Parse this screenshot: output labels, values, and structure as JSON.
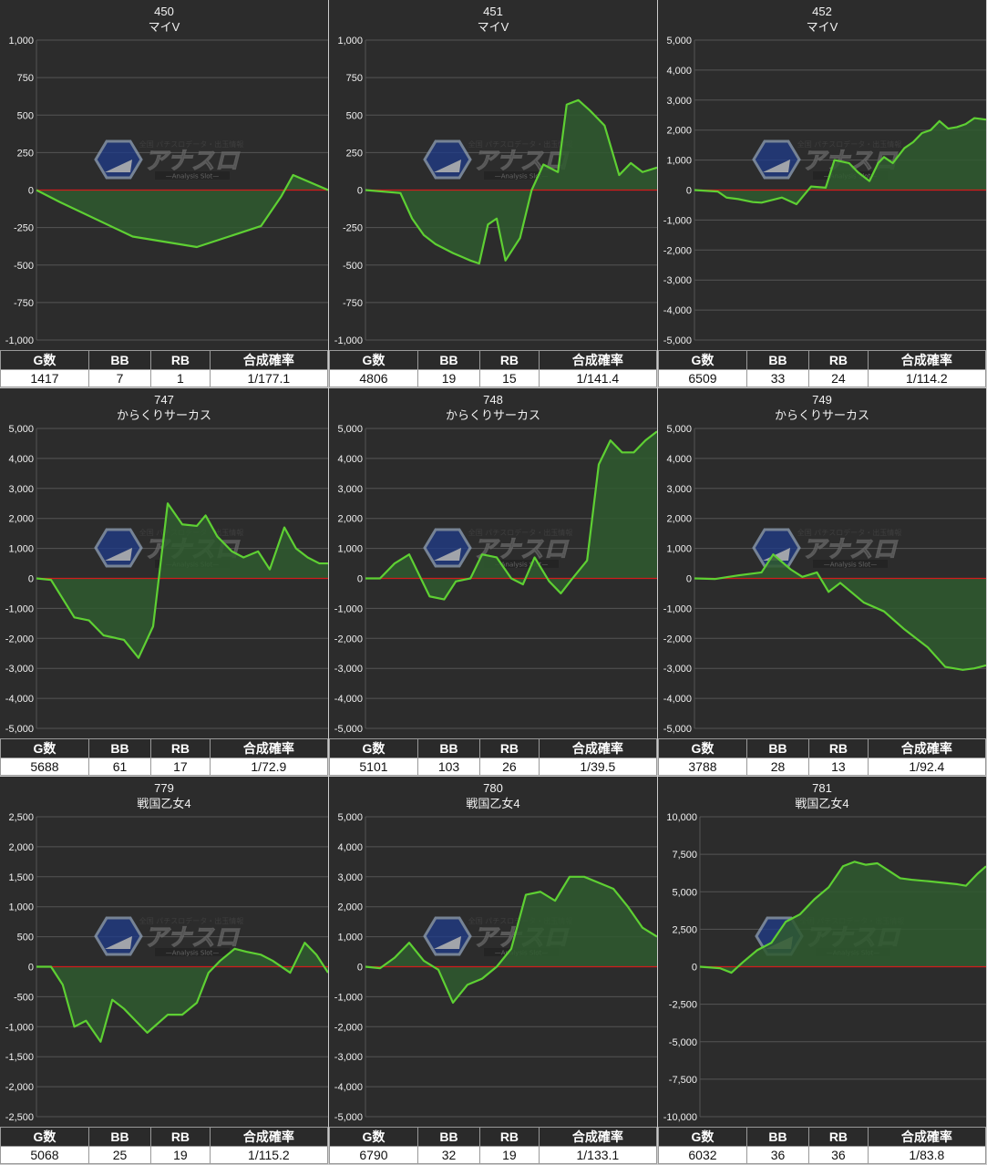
{
  "stats_headers": [
    "G数",
    "BB",
    "RB",
    "合成確率"
  ],
  "line_color": "#5ed033",
  "fill_color": "#2f5a2f",
  "zero_line_color": "#d11c1c",
  "watermark": {
    "title": "アナスロ",
    "subtitle": "—Analysis Slot—",
    "tagline": "全国 パチスロデータ・出玉情報"
  },
  "charts": [
    {
      "machine": "450",
      "model": "マイV",
      "stats": {
        "g": "1417",
        "bb": "7",
        "rb": "1",
        "prob": "1/177.1"
      },
      "chart_data": {
        "type": "area",
        "yticks": [
          "1,000",
          "750",
          "500",
          "250",
          "0",
          "-250",
          "-500",
          "-750",
          "-1,000"
        ],
        "ylim": [
          -1000,
          1000
        ],
        "x": [
          0,
          0.08,
          0.33,
          0.55,
          0.77,
          0.84,
          0.88,
          1.0
        ],
        "y": [
          0,
          -80,
          -310,
          -380,
          -240,
          -40,
          100,
          0
        ]
      }
    },
    {
      "machine": "451",
      "model": "マイV",
      "stats": {
        "g": "4806",
        "bb": "19",
        "rb": "15",
        "prob": "1/141.4"
      },
      "chart_data": {
        "type": "area",
        "yticks": [
          "1,000",
          "750",
          "500",
          "250",
          "0",
          "-250",
          "-500",
          "-750",
          "-1,000"
        ],
        "ylim": [
          -1000,
          1000
        ],
        "x": [
          0,
          0.12,
          0.16,
          0.2,
          0.24,
          0.3,
          0.36,
          0.39,
          0.42,
          0.45,
          0.48,
          0.53,
          0.57,
          0.61,
          0.66,
          0.69,
          0.73,
          0.77,
          0.82,
          0.87,
          0.91,
          0.95,
          1.0
        ],
        "y": [
          0,
          -20,
          -190,
          -300,
          -360,
          -420,
          -470,
          -490,
          -230,
          -190,
          -470,
          -320,
          0,
          170,
          120,
          570,
          600,
          530,
          430,
          100,
          180,
          120,
          150
        ]
      }
    },
    {
      "machine": "452",
      "model": "マイV",
      "stats": {
        "g": "6509",
        "bb": "33",
        "rb": "24",
        "prob": "1/114.2"
      },
      "chart_data": {
        "type": "area",
        "yticks": [
          "5,000",
          "4,000",
          "3,000",
          "2,000",
          "1,000",
          "0",
          "-1,000",
          "-2,000",
          "-3,000",
          "-4,000",
          "-5,000"
        ],
        "ylim": [
          -5000,
          5000
        ],
        "x": [
          0,
          0.08,
          0.11,
          0.15,
          0.2,
          0.23,
          0.3,
          0.35,
          0.4,
          0.45,
          0.48,
          0.53,
          0.56,
          0.6,
          0.63,
          0.65,
          0.68,
          0.72,
          0.75,
          0.78,
          0.81,
          0.84,
          0.87,
          0.9,
          0.93,
          0.96,
          1.0
        ],
        "y": [
          0,
          -50,
          -250,
          -300,
          -400,
          -420,
          -250,
          -470,
          120,
          80,
          1000,
          900,
          600,
          300,
          900,
          1100,
          900,
          1400,
          1600,
          1900,
          2000,
          2300,
          2050,
          2100,
          2200,
          2400,
          2350
        ]
      }
    },
    {
      "machine": "747",
      "model": "からくりサーカス",
      "stats": {
        "g": "5688",
        "bb": "61",
        "rb": "17",
        "prob": "1/72.9"
      },
      "chart_data": {
        "type": "area",
        "yticks": [
          "5,000",
          "4,000",
          "3,000",
          "2,000",
          "1,000",
          "0",
          "-1,000",
          "-2,000",
          "-3,000",
          "-4,000",
          "-5,000"
        ],
        "ylim": [
          -5000,
          5000
        ],
        "x": [
          0,
          0.05,
          0.13,
          0.18,
          0.23,
          0.3,
          0.35,
          0.4,
          0.45,
          0.5,
          0.55,
          0.58,
          0.62,
          0.67,
          0.71,
          0.76,
          0.8,
          0.85,
          0.89,
          0.93,
          0.97,
          1.0
        ],
        "y": [
          0,
          -50,
          -1300,
          -1400,
          -1900,
          -2050,
          -2650,
          -1600,
          2500,
          1800,
          1750,
          2100,
          1400,
          900,
          700,
          900,
          300,
          1700,
          1000,
          700,
          500,
          500
        ]
      }
    },
    {
      "machine": "748",
      "model": "からくりサーカス",
      "stats": {
        "g": "5101",
        "bb": "103",
        "rb": "26",
        "prob": "1/39.5"
      },
      "chart_data": {
        "type": "area",
        "yticks": [
          "5,000",
          "4,000",
          "3,000",
          "2,000",
          "1,000",
          "0",
          "-1,000",
          "-2,000",
          "-3,000",
          "-4,000",
          "-5,000"
        ],
        "ylim": [
          -5000,
          5000
        ],
        "x": [
          0,
          0.05,
          0.1,
          0.15,
          0.22,
          0.27,
          0.31,
          0.36,
          0.4,
          0.45,
          0.5,
          0.54,
          0.58,
          0.63,
          0.67,
          0.71,
          0.76,
          0.8,
          0.84,
          0.88,
          0.92,
          0.96,
          1.0
        ],
        "y": [
          0,
          0,
          500,
          800,
          -600,
          -700,
          -100,
          0,
          800,
          700,
          0,
          -200,
          700,
          -100,
          -500,
          0,
          600,
          3800,
          4600,
          4200,
          4200,
          4600,
          4900
        ]
      }
    },
    {
      "machine": "749",
      "model": "からくりサーカス",
      "stats": {
        "g": "3788",
        "bb": "28",
        "rb": "13",
        "prob": "1/92.4"
      },
      "chart_data": {
        "type": "area",
        "yticks": [
          "5,000",
          "4,000",
          "3,000",
          "2,000",
          "1,000",
          "0",
          "-1,000",
          "-2,000",
          "-3,000",
          "-4,000",
          "-5,000"
        ],
        "ylim": [
          -5000,
          5000
        ],
        "x": [
          0,
          0.07,
          0.15,
          0.23,
          0.27,
          0.33,
          0.37,
          0.42,
          0.46,
          0.5,
          0.58,
          0.65,
          0.72,
          0.8,
          0.86,
          0.92,
          0.96,
          1.0
        ],
        "y": [
          0,
          -20,
          100,
          200,
          800,
          300,
          50,
          200,
          -450,
          -150,
          -800,
          -1100,
          -1700,
          -2300,
          -2950,
          -3050,
          -3000,
          -2900
        ]
      }
    },
    {
      "machine": "779",
      "model": "戦国乙女4",
      "stats": {
        "g": "5068",
        "bb": "25",
        "rb": "19",
        "prob": "1/115.2"
      },
      "chart_data": {
        "type": "area",
        "yticks": [
          "2,500",
          "2,000",
          "1,500",
          "1,000",
          "500",
          "0",
          "-500",
          "-1,000",
          "-1,500",
          "-2,000",
          "-2,500"
        ],
        "ylim": [
          -2500,
          2500
        ],
        "x": [
          0,
          0.05,
          0.09,
          0.13,
          0.17,
          0.22,
          0.26,
          0.3,
          0.34,
          0.38,
          0.45,
          0.5,
          0.55,
          0.59,
          0.63,
          0.68,
          0.72,
          0.77,
          0.81,
          0.87,
          0.92,
          0.96,
          1.0
        ],
        "y": [
          0,
          0,
          -300,
          -1000,
          -900,
          -1250,
          -550,
          -700,
          -900,
          -1100,
          -800,
          -800,
          -600,
          -100,
          100,
          300,
          250,
          200,
          100,
          -100,
          400,
          200,
          -100
        ]
      }
    },
    {
      "machine": "780",
      "model": "戦国乙女4",
      "stats": {
        "g": "6790",
        "bb": "32",
        "rb": "19",
        "prob": "1/133.1"
      },
      "chart_data": {
        "type": "area",
        "yticks": [
          "5,000",
          "4,000",
          "3,000",
          "2,000",
          "1,000",
          "0",
          "-1,000",
          "-2,000",
          "-3,000",
          "-4,000",
          "-5,000"
        ],
        "ylim": [
          -5000,
          5000
        ],
        "x": [
          0,
          0.05,
          0.1,
          0.15,
          0.2,
          0.25,
          0.3,
          0.35,
          0.4,
          0.45,
          0.5,
          0.55,
          0.6,
          0.65,
          0.7,
          0.75,
          0.8,
          0.85,
          0.9,
          0.95,
          1.0
        ],
        "y": [
          0,
          -50,
          300,
          800,
          200,
          -100,
          -1200,
          -600,
          -400,
          0,
          600,
          2400,
          2500,
          2200,
          3000,
          3000,
          2800,
          2600,
          2000,
          1300,
          1000
        ]
      }
    },
    {
      "machine": "781",
      "model": "戦国乙女4",
      "stats": {
        "g": "6032",
        "bb": "36",
        "rb": "36",
        "prob": "1/83.8"
      },
      "chart_data": {
        "type": "area",
        "yticks": [
          "10,000",
          "7,500",
          "5,000",
          "2,500",
          "0",
          "-2,500",
          "-5,000",
          "-7,500",
          "-10,000"
        ],
        "ylim": [
          -10000,
          10000
        ],
        "x": [
          0,
          0.07,
          0.11,
          0.15,
          0.2,
          0.25,
          0.3,
          0.35,
          0.4,
          0.45,
          0.5,
          0.54,
          0.58,
          0.62,
          0.66,
          0.7,
          0.74,
          0.8,
          0.9,
          0.93,
          0.97,
          1.0
        ],
        "y": [
          0,
          -100,
          -400,
          300,
          1100,
          1600,
          3000,
          3500,
          4500,
          5300,
          6700,
          7000,
          6800,
          6900,
          6400,
          5900,
          5800,
          5700,
          5500,
          5400,
          6200,
          6700
        ]
      }
    }
  ]
}
